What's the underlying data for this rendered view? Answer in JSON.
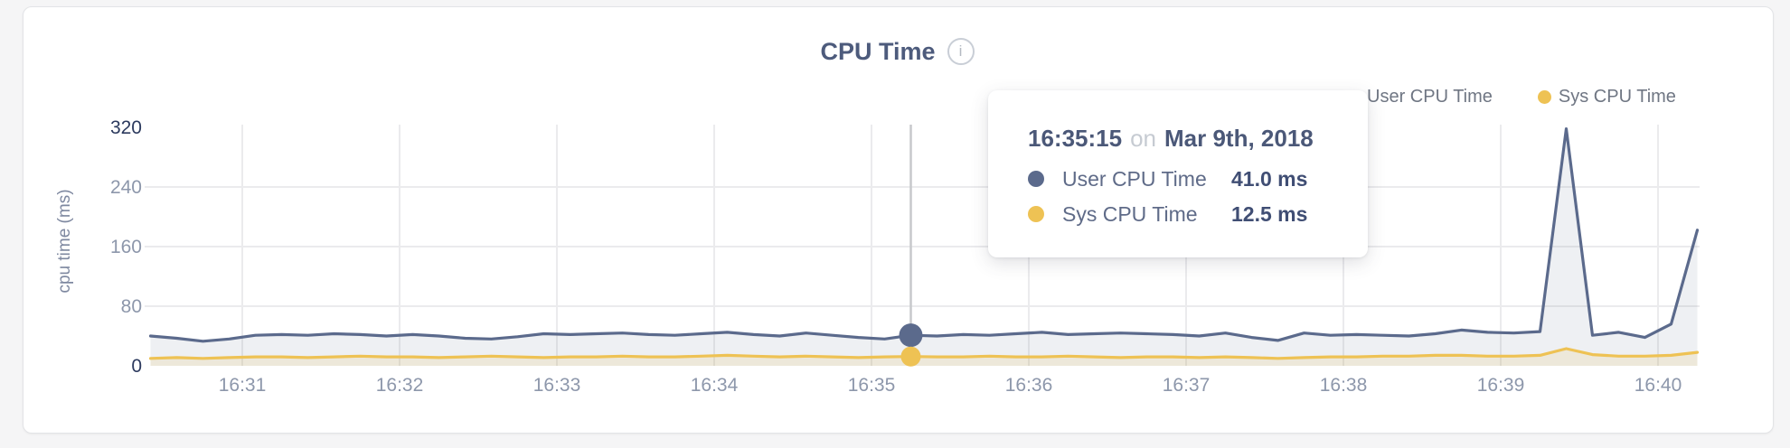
{
  "header": {
    "title": "CPU Time",
    "info_icon": "i"
  },
  "legend": {
    "items": [
      {
        "label": "User CPU Time",
        "color": "#5b6a8c"
      },
      {
        "label": "Sys CPU Time",
        "color": "#eec254"
      }
    ]
  },
  "tooltip": {
    "time": "16:35:15",
    "connector": "on",
    "date": "Mar 9th, 2018",
    "rows": [
      {
        "label": "User CPU Time",
        "value": "41.0 ms",
        "color": "#5b6a8c"
      },
      {
        "label": "Sys CPU Time",
        "value": "12.5 ms",
        "color": "#eec254"
      }
    ]
  },
  "colors": {
    "user_series": "#5b6a8c",
    "sys_series": "#eec254",
    "user_fill": "rgba(91,106,140,0.10)",
    "sys_fill": "rgba(238,194,84,0.16)",
    "gridline": "#ebebed",
    "axis_text": "#8d97ab",
    "axis_text_dark": "#2c3a5e",
    "hover_line": "#c7c9cc",
    "title_text": "#4d5b7c"
  },
  "chart_data": {
    "type": "area",
    "title": "CPU Time",
    "xlabel": "",
    "ylabel": "cpu time (ms)",
    "ylim": [
      0,
      347
    ],
    "grid": true,
    "legend_position": "top-right",
    "y_ticks": [
      0,
      80,
      160,
      240,
      320
    ],
    "y_ticks_dark": [
      0,
      320
    ],
    "x_tick_labels": [
      "16:31",
      "16:32",
      "16:33",
      "16:34",
      "16:35",
      "16:36",
      "16:37",
      "16:38",
      "16:39",
      "16:40"
    ],
    "x_range": [
      "16:30:25",
      "16:40:15"
    ],
    "x": [
      "16:30:25",
      "16:30:35",
      "16:30:45",
      "16:30:55",
      "16:31:05",
      "16:31:15",
      "16:31:25",
      "16:31:35",
      "16:31:45",
      "16:31:55",
      "16:32:05",
      "16:32:15",
      "16:32:25",
      "16:32:35",
      "16:32:45",
      "16:32:55",
      "16:33:05",
      "16:33:15",
      "16:33:25",
      "16:33:35",
      "16:33:45",
      "16:33:55",
      "16:34:05",
      "16:34:15",
      "16:34:25",
      "16:34:35",
      "16:34:45",
      "16:34:55",
      "16:35:05",
      "16:35:15",
      "16:35:25",
      "16:35:35",
      "16:35:45",
      "16:35:55",
      "16:36:05",
      "16:36:15",
      "16:36:25",
      "16:36:35",
      "16:36:45",
      "16:36:55",
      "16:37:05",
      "16:37:15",
      "16:37:25",
      "16:37:35",
      "16:37:45",
      "16:37:55",
      "16:38:05",
      "16:38:15",
      "16:38:25",
      "16:38:35",
      "16:38:45",
      "16:38:55",
      "16:39:05",
      "16:39:15",
      "16:39:25",
      "16:39:35",
      "16:39:45",
      "16:39:55",
      "16:40:05",
      "16:40:15"
    ],
    "series": [
      {
        "name": "User CPU Time",
        "color": "#5b6a8c",
        "unit": "ms",
        "values": [
          40,
          37,
          33,
          36,
          41,
          42,
          41,
          43,
          42,
          40,
          42,
          40,
          37,
          36,
          39,
          43,
          42,
          43,
          44,
          42,
          41,
          43,
          45,
          42,
          40,
          44,
          41,
          38,
          36,
          41,
          40,
          42,
          41,
          43,
          45,
          42,
          43,
          44,
          43,
          42,
          40,
          44,
          38,
          34,
          44,
          41,
          42,
          41,
          40,
          43,
          48,
          45,
          44,
          46,
          318,
          41,
          45,
          38,
          56,
          182
        ]
      },
      {
        "name": "Sys CPU Time",
        "color": "#eec254",
        "unit": "ms",
        "values": [
          10,
          11,
          10,
          11,
          12,
          12,
          11,
          12,
          13,
          12,
          12,
          11,
          12,
          13,
          12,
          11,
          12,
          12,
          13,
          12,
          12,
          13,
          14,
          13,
          12,
          13,
          12,
          11,
          12,
          12.5,
          12,
          12,
          13,
          12,
          12,
          13,
          12,
          11,
          12,
          12,
          11,
          12,
          11,
          10,
          11,
          12,
          12,
          13,
          13,
          14,
          14,
          13,
          13,
          14,
          23,
          15,
          13,
          13,
          14,
          18
        ]
      }
    ],
    "highlight": {
      "x": "16:35:15",
      "user_ms": 41.0,
      "sys_ms": 12.5
    }
  }
}
